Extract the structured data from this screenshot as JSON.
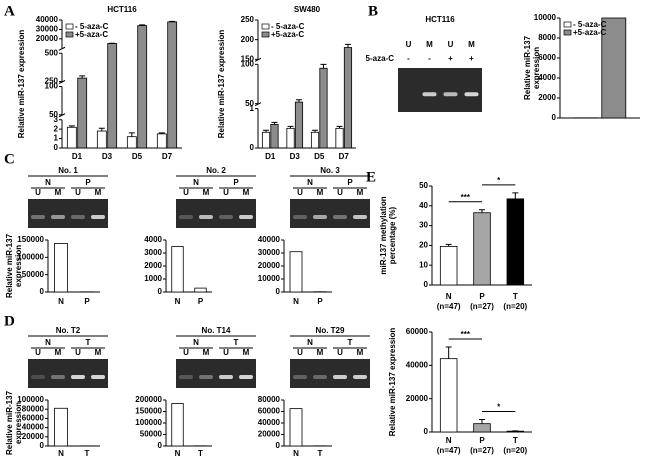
{
  "panel_labels": [
    "A",
    "B",
    "C",
    "D",
    "E"
  ],
  "gels": [
    {
      "title": "HCT116",
      "lanes": [
        "U",
        "M",
        "U",
        "M"
      ],
      "row_label": "5-aza-C",
      "signs": [
        "-",
        "-",
        "+",
        "+"
      ]
    },
    {
      "title": "No. 1",
      "groups": [
        "N",
        "P"
      ],
      "lanes": [
        "U",
        "M",
        "U",
        "M"
      ]
    },
    {
      "title": "No. 2",
      "groups": [
        "N",
        "P"
      ],
      "lanes": [
        "U",
        "M",
        "U",
        "M"
      ]
    },
    {
      "title": "No. 3",
      "groups": [
        "N",
        "P"
      ],
      "lanes": [
        "U",
        "M",
        "U",
        "M"
      ]
    },
    {
      "title": "No. T2",
      "groups": [
        "N",
        "T"
      ],
      "lanes": [
        "U",
        "M",
        "U",
        "M"
      ]
    },
    {
      "title": "No. T14",
      "groups": [
        "N",
        "T"
      ],
      "lanes": [
        "U",
        "M",
        "U",
        "M"
      ]
    },
    {
      "title": "No. T29",
      "groups": [
        "N",
        "T"
      ],
      "lanes": [
        "U",
        "M",
        "U",
        "M"
      ]
    }
  ],
  "chart_data": [
    {
      "type": "bar",
      "title": "HCT116",
      "ylabel": "Relative miR-137 expression",
      "categories": [
        "D1",
        "D3",
        "D5",
        "D7"
      ],
      "series": [
        {
          "name": "- 5-aza-C",
          "color": "#ffffff",
          "values": [
            2.2,
            1.8,
            1.2,
            1.5
          ],
          "errors": [
            0.15,
            0.3,
            0.4,
            0.1
          ]
        },
        {
          "name": "+5-aza-C",
          "color": "#8c8c8c",
          "values": [
            280,
            15000,
            34000,
            38000
          ],
          "errors": [
            20,
            300,
            800,
            500
          ]
        }
      ],
      "axis_segments": [
        {
          "ylim": [
            0,
            3
          ],
          "yticks": [
            0,
            1,
            2,
            3
          ]
        },
        {
          "ylim": [
            50,
            100
          ],
          "yticks": [
            50,
            100
          ]
        },
        {
          "ylim": [
            250,
            500
          ],
          "yticks": [
            250,
            500
          ]
        },
        {
          "ylim": [
            10000,
            40000
          ],
          "yticks": [
            20000,
            30000,
            40000
          ]
        }
      ],
      "legend": "upper left"
    },
    {
      "type": "bar",
      "title": "SW480",
      "ylabel": "Relative miR-137 expression",
      "categories": [
        "D1",
        "D3",
        "D5",
        "D7"
      ],
      "series": [
        {
          "name": "- 5-aza-C",
          "color": "#ffffff",
          "values": [
            0.4,
            0.5,
            0.4,
            0.5
          ],
          "errors": [
            0.05,
            0.05,
            0.05,
            0.05
          ]
        },
        {
          "name": "+5-aza-C",
          "color": "#8c8c8c",
          "values": [
            0.6,
            52,
            95,
            180
          ],
          "errors": [
            0.05,
            3,
            5,
            8
          ]
        }
      ],
      "axis_segments": [
        {
          "ylim": [
            0,
            1
          ],
          "yticks": [
            0,
            1
          ]
        },
        {
          "ylim": [
            50,
            100
          ],
          "yticks": [
            50,
            100
          ]
        },
        {
          "ylim": [
            150,
            250
          ],
          "yticks": [
            150,
            200,
            250
          ]
        }
      ],
      "legend": "upper left"
    },
    {
      "type": "bar",
      "ylabel": [
        "Relative miR-137",
        "expression"
      ],
      "categories": [
        null
      ],
      "series": [
        {
          "name": "- 5-aza-C",
          "color": "#ffffff",
          "values": [
            20
          ]
        },
        {
          "name": "+5-aza-C",
          "color": "#8c8c8c",
          "values": [
            10000
          ]
        }
      ],
      "ylim": [
        0,
        10000
      ],
      "yticks": [
        0,
        2000,
        4000,
        6000,
        8000,
        10000
      ],
      "legend": "upper left"
    },
    {
      "type": "bar",
      "ylabel": [
        "Relative miR-137",
        "expression"
      ],
      "categories": [
        "N",
        "P"
      ],
      "values": [
        140000,
        500
      ],
      "color": "#ffffff",
      "ylim": [
        0,
        150000
      ],
      "yticks": [
        0,
        50000,
        100000,
        150000
      ]
    },
    {
      "type": "bar",
      "categories": [
        "N",
        "P"
      ],
      "values": [
        3500,
        300
      ],
      "color": "#ffffff",
      "ylim": [
        0,
        4000
      ],
      "yticks": [
        0,
        1000,
        2000,
        3000,
        4000
      ]
    },
    {
      "type": "bar",
      "categories": [
        "N",
        "P"
      ],
      "values": [
        31000,
        200
      ],
      "color": "#ffffff",
      "ylim": [
        0,
        40000
      ],
      "yticks": [
        0,
        10000,
        20000,
        30000,
        40000
      ]
    },
    {
      "type": "bar",
      "ylabel": [
        "Relative miR-137",
        "expression"
      ],
      "categories": [
        "N",
        "T"
      ],
      "values": [
        82000,
        300
      ],
      "color": "#ffffff",
      "ylim": [
        0,
        100000
      ],
      "yticks": [
        0,
        20000,
        40000,
        60000,
        80000,
        100000
      ]
    },
    {
      "type": "bar",
      "categories": [
        "N",
        "T"
      ],
      "values": [
        185000,
        800
      ],
      "color": "#ffffff",
      "ylim": [
        0,
        200000
      ],
      "yticks": [
        0,
        50000,
        100000,
        150000,
        200000
      ]
    },
    {
      "type": "bar",
      "categories": [
        "N",
        "T"
      ],
      "values": [
        65000,
        300
      ],
      "color": "#ffffff",
      "ylim": [
        0,
        80000
      ],
      "yticks": [
        0,
        20000,
        40000,
        60000,
        80000
      ]
    },
    {
      "type": "bar",
      "ylabel": [
        "miR-137 methylation",
        "percentage (%)"
      ],
      "categories": [
        "N",
        "P",
        "T"
      ],
      "category_notes": [
        "(n=47)",
        "(n=27)",
        "(n=20)"
      ],
      "values": [
        19.5,
        36.5,
        43.5
      ],
      "errors": [
        1,
        1.5,
        3
      ],
      "colors": [
        "#ffffff",
        "#a6a6a6",
        "#000000"
      ],
      "ylim": [
        0,
        50
      ],
      "yticks": [
        0,
        10,
        20,
        30,
        40,
        50
      ],
      "significance": [
        {
          "label": "***",
          "between": [
            "N",
            "P"
          ]
        },
        {
          "label": "*",
          "between": [
            "P",
            "T"
          ]
        }
      ]
    },
    {
      "type": "bar",
      "ylabel": "Relative miR-137 expression",
      "categories": [
        "N",
        "P",
        "T"
      ],
      "category_notes": [
        "(n=47)",
        "(n=27)",
        "(n=20)"
      ],
      "values": [
        44000,
        5000,
        500
      ],
      "errors": [
        7000,
        2500,
        200
      ],
      "colors": [
        "#ffffff",
        "#a6a6a6",
        "#000000"
      ],
      "ylim": [
        0,
        60000
      ],
      "yticks": [
        0,
        20000,
        40000,
        60000
      ],
      "significance": [
        {
          "label": "***",
          "between": [
            "N",
            "P"
          ]
        },
        {
          "label": "*",
          "between": [
            "P",
            "T"
          ]
        }
      ]
    }
  ]
}
